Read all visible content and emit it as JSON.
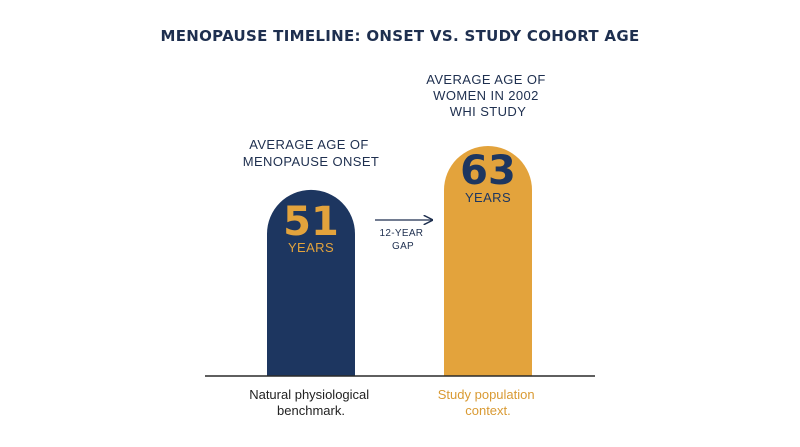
{
  "chart_data": {
    "type": "bar",
    "title": "MENOPAUSE TIMELINE: ONSET VS. STUDY COHORT AGE",
    "categories": [
      "AVERAGE AGE OF MENOPAUSE ONSET",
      "AVERAGE AGE OF WOMEN IN 2002 WHI STUDY"
    ],
    "values": [
      51,
      63
    ],
    "unit_label": "YEARS",
    "gap_label": "12-YEAR GAP",
    "captions": [
      "Natural physiological benchmark.",
      "Study population context."
    ],
    "colors": {
      "title": "#1e2f4f",
      "onset_bar": "#1d3660",
      "study_bar": "#e3a33c",
      "onset_value": "#e3a33c",
      "study_value": "#1d3660",
      "label_text": "#1e2f4f",
      "study_caption": "#d99a33",
      "baseline": "#2a2a2a",
      "arrow": "#1e2f4f"
    }
  }
}
